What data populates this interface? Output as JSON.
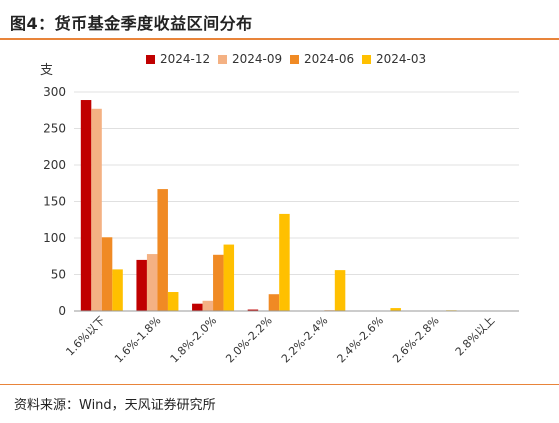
{
  "figure": {
    "title": "图4：货币基金季度收益区间分布",
    "source": "资料来源：Wind，天风证券研究所"
  },
  "chart_data": {
    "type": "bar",
    "y_unit": "支",
    "categories": [
      "1.6%以下",
      "1.6%-1.8%",
      "1.8%-2.0%",
      "2.0%-2.2%",
      "2.2%-2.4%",
      "2.4%-2.6%",
      "2.6%-2.8%",
      "2.8%以上"
    ],
    "series": [
      {
        "name": "2024-12",
        "color": "#c00000",
        "values": [
          289,
          70,
          10,
          2,
          0,
          0,
          0,
          0
        ]
      },
      {
        "name": "2024-09",
        "color": "#f4b183",
        "values": [
          277,
          78,
          14,
          0,
          0,
          0,
          0,
          0
        ]
      },
      {
        "name": "2024-06",
        "color": "#f08a24",
        "values": [
          101,
          167,
          77,
          23,
          1,
          0,
          0,
          0
        ]
      },
      {
        "name": "2024-03",
        "color": "#ffc000",
        "values": [
          57,
          26,
          91,
          133,
          56,
          4,
          1,
          0
        ]
      }
    ],
    "ylim": [
      0,
      300
    ],
    "yticks": [
      0,
      50,
      100,
      150,
      200,
      250,
      300
    ],
    "grid": true,
    "legend": "top"
  }
}
